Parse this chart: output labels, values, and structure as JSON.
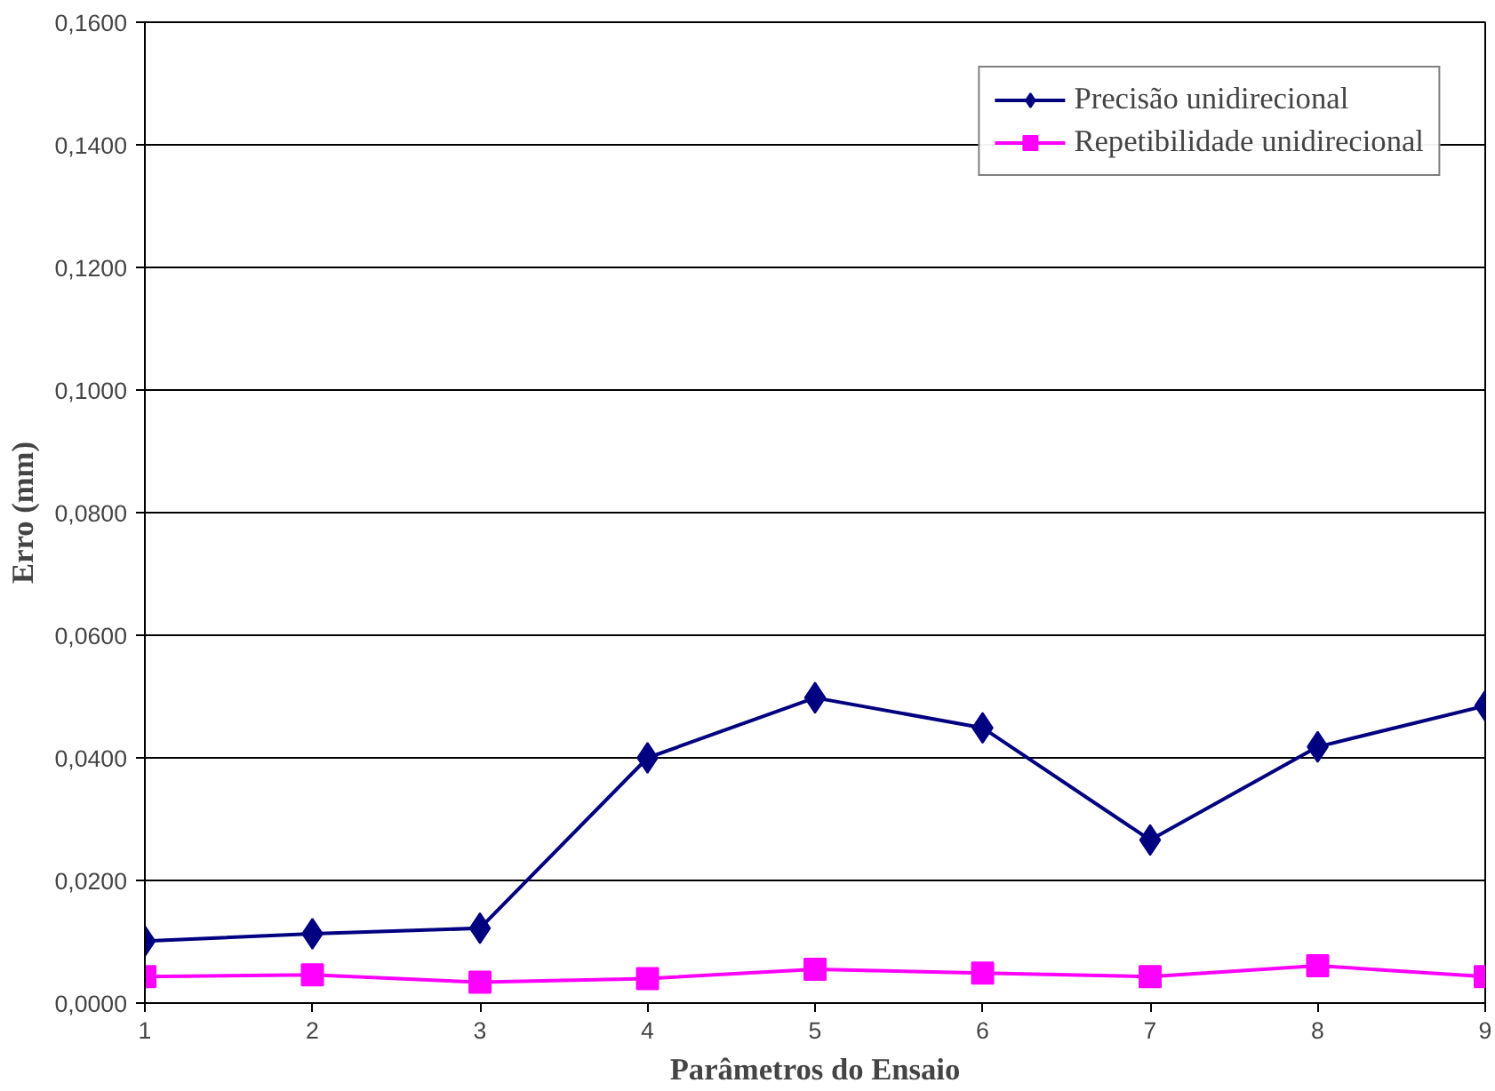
{
  "chart_data": {
    "type": "line",
    "xlabel": "Parâmetros do Ensaio",
    "ylabel": "Erro (mm)",
    "x": [
      1,
      2,
      3,
      4,
      5,
      6,
      7,
      8,
      9
    ],
    "xlim": [
      1,
      9
    ],
    "xticks": [
      1,
      2,
      3,
      4,
      5,
      6,
      7,
      8,
      9
    ],
    "ylim": [
      0,
      0.16
    ],
    "yticks": [
      {
        "value": 0,
        "label": "0,0000"
      },
      {
        "value": 0.02,
        "label": "0,0200"
      },
      {
        "value": 0.04,
        "label": "0,0400"
      },
      {
        "value": 0.06,
        "label": "0,0600"
      },
      {
        "value": 0.08,
        "label": "0,0800"
      },
      {
        "value": 0.1,
        "label": "0,1000"
      },
      {
        "value": 0.12,
        "label": "0,1200"
      },
      {
        "value": 0.14,
        "label": "0,1400"
      },
      {
        "value": 0.16,
        "label": "0,1600"
      }
    ],
    "grid": "y",
    "legend": "top right",
    "line_style": "solid",
    "series": [
      {
        "name": "Precisão unidirecional",
        "color": "#000080",
        "marker": "diamond",
        "values": [
          0.0101,
          0.0113,
          0.0122,
          0.04,
          0.0498,
          0.0449,
          0.0266,
          0.0418,
          0.0485
        ]
      },
      {
        "name": "Repetibilidade unidirecional",
        "color": "#ff00ff",
        "marker": "square",
        "values": [
          0.0043,
          0.0046,
          0.0034,
          0.004,
          0.0055,
          0.0049,
          0.0043,
          0.0061,
          0.0043
        ]
      }
    ]
  }
}
